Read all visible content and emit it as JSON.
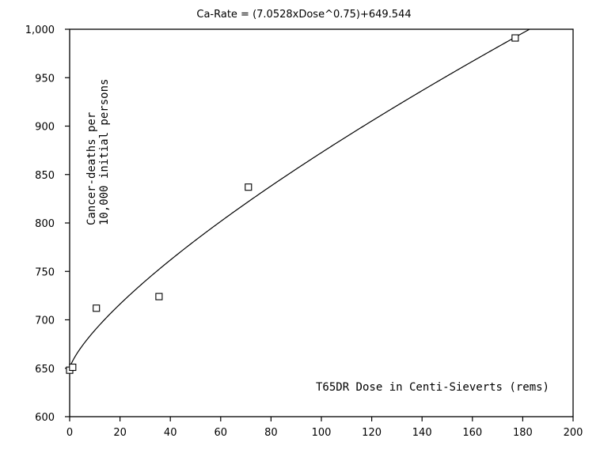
{
  "chart_data": {
    "type": "scatter",
    "title": "Ca-Rate = (7.0528xDose^0.75)+649.544",
    "xlabel": "T65DR Dose in Centi-Sieverts (rems)",
    "ylabel_line1": "Cancer-deaths per",
    "ylabel_line2": "10,000 initial persons",
    "xlim": [
      0,
      200
    ],
    "ylim": [
      600,
      1000
    ],
    "x_ticks": [
      0,
      20,
      40,
      60,
      80,
      100,
      120,
      140,
      160,
      180,
      200
    ],
    "y_ticks": [
      600,
      650,
      700,
      750,
      800,
      850,
      900,
      950,
      1000
    ],
    "x_tick_labels": [
      "0",
      "20",
      "40",
      "60",
      "80",
      "100",
      "120",
      "140",
      "160",
      "180",
      "200"
    ],
    "y_tick_labels": [
      "600",
      "650",
      "700",
      "750",
      "800",
      "850",
      "900",
      "950",
      "1,000"
    ],
    "points": [
      {
        "x": 0,
        "y": 648
      },
      {
        "x": 1.2,
        "y": 651
      },
      {
        "x": 10.6,
        "y": 712
      },
      {
        "x": 35.5,
        "y": 724
      },
      {
        "x": 71,
        "y": 837
      },
      {
        "x": 177,
        "y": 991
      }
    ],
    "fit": {
      "coef": 7.0528,
      "exponent": 0.75,
      "intercept": 649.544
    },
    "grid": false,
    "legend": "none"
  }
}
